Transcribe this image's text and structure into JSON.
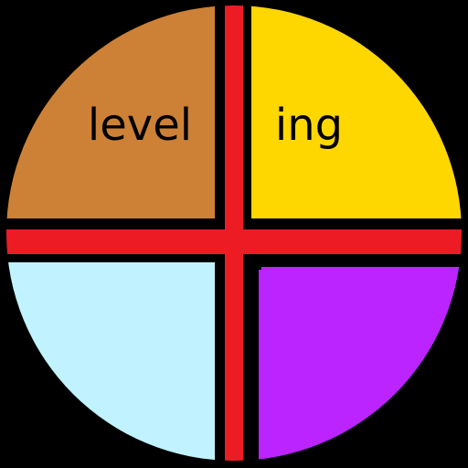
{
  "wheel": {
    "colors": {
      "background": "#000000",
      "outline": "#000000",
      "divider": "#ED1C24",
      "top_left": "#CD8136",
      "top_right": "#FFD700",
      "bottom_left": "#C1F2FF",
      "bottom_right": "#BB24FF"
    },
    "quadrants": {
      "top_left": {
        "label": "level"
      },
      "top_right": {
        "label": "ing"
      },
      "bottom_left": {
        "label": ""
      },
      "bottom_right": {
        "label": ""
      }
    }
  }
}
